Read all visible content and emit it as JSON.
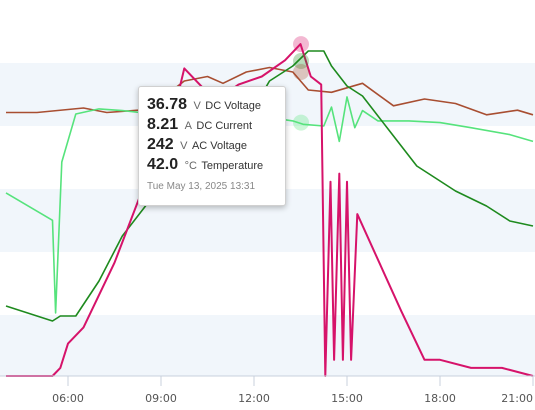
{
  "chart_data": {
    "type": "line",
    "x_ticks": [
      "06:00",
      "09:00",
      "12:00",
      "15:00",
      "18:00",
      "21:00"
    ],
    "grid": "horizontal alternating bands",
    "series": [
      {
        "name": "DC Voltage",
        "unit": "V",
        "color": "#d6136a",
        "points": [
          [
            "04:00",
            0
          ],
          [
            "05:00",
            0
          ],
          [
            "05:30",
            0
          ],
          [
            "05:45",
            1
          ],
          [
            "06:00",
            4
          ],
          [
            "06:30",
            6
          ],
          [
            "07:30",
            14
          ],
          [
            "08:30",
            24
          ],
          [
            "09:15",
            30
          ],
          [
            "09:45",
            38
          ],
          [
            "10:45",
            34
          ],
          [
            "11:30",
            36
          ],
          [
            "12:15",
            37
          ],
          [
            "13:00",
            39
          ],
          [
            "13:30",
            41
          ],
          [
            "13:50",
            37
          ],
          [
            "14:10",
            36
          ],
          [
            "14:18",
            0
          ],
          [
            "14:28",
            24
          ],
          [
            "14:35",
            2
          ],
          [
            "14:45",
            25
          ],
          [
            "14:52",
            2
          ],
          [
            "15:00",
            24
          ],
          [
            "15:08",
            2
          ],
          [
            "15:20",
            20
          ],
          [
            "16:45",
            8
          ],
          [
            "17:30",
            2
          ],
          [
            "18:00",
            2
          ],
          [
            "19:00",
            1
          ],
          [
            "20:00",
            1
          ],
          [
            "21:00",
            0
          ]
        ]
      },
      {
        "name": "DC Current",
        "unit": "A",
        "color": "#1e8a1e",
        "points": [
          [
            "04:00",
            7.0
          ],
          [
            "05:30",
            5.5
          ],
          [
            "05:45",
            6.0
          ],
          [
            "06:15",
            6.0
          ],
          [
            "07:00",
            9.5
          ],
          [
            "07:45",
            14.0
          ],
          [
            "08:30",
            17.0
          ],
          [
            "09:15",
            21.0
          ],
          [
            "10:00",
            24.0
          ],
          [
            "10:30",
            26.0
          ],
          [
            "11:15",
            27.0
          ],
          [
            "11:45",
            25.5
          ],
          [
            "12:30",
            29.5
          ],
          [
            "13:15",
            31.0
          ],
          [
            "13:45",
            32.5
          ],
          [
            "14:15",
            32.5
          ],
          [
            "14:30",
            31.0
          ],
          [
            "15:00",
            29.0
          ],
          [
            "15:30",
            28.0
          ],
          [
            "16:30",
            24.0
          ],
          [
            "17:15",
            21.0
          ],
          [
            "17:45",
            20.0
          ],
          [
            "18:30",
            18.5
          ],
          [
            "19:30",
            17.0
          ],
          [
            "20:15",
            15.5
          ],
          [
            "21:00",
            15.0
          ]
        ]
      },
      {
        "name": "AC Voltage",
        "unit": "V",
        "color": "#56e37c",
        "points": [
          [
            "04:00",
            180
          ],
          [
            "05:30",
            164
          ],
          [
            "05:36",
            110
          ],
          [
            "05:48",
            198
          ],
          [
            "06:15",
            226
          ],
          [
            "07:00",
            229
          ],
          [
            "07:45",
            228
          ],
          [
            "08:45",
            226
          ],
          [
            "09:30",
            229
          ],
          [
            "10:15",
            228
          ],
          [
            "11:00",
            225
          ],
          [
            "11:45",
            226
          ],
          [
            "12:30",
            224
          ],
          [
            "13:15",
            222
          ],
          [
            "13:35",
            220
          ],
          [
            "14:15",
            219
          ],
          [
            "14:30",
            230
          ],
          [
            "14:45",
            210
          ],
          [
            "15:00",
            236
          ],
          [
            "15:15",
            218
          ],
          [
            "15:30",
            228
          ],
          [
            "16:00",
            222
          ],
          [
            "17:00",
            222
          ],
          [
            "18:00",
            221
          ],
          [
            "19:00",
            218
          ],
          [
            "20:15",
            214
          ],
          [
            "21:00",
            210
          ]
        ]
      },
      {
        "name": "Temperature",
        "unit": "°C",
        "color": "#a84e31",
        "points": [
          [
            "04:00",
            41.0
          ],
          [
            "05:00",
            41.0
          ],
          [
            "06:30",
            41.2
          ],
          [
            "07:15",
            41.0
          ],
          [
            "08:15",
            41.1
          ],
          [
            "09:00",
            41.6
          ],
          [
            "09:45",
            42.4
          ],
          [
            "10:30",
            42.6
          ],
          [
            "11:00",
            42.3
          ],
          [
            "11:45",
            42.8
          ],
          [
            "12:30",
            43.0
          ],
          [
            "13:15",
            42.8
          ],
          [
            "13:45",
            42.0
          ],
          [
            "14:30",
            41.9
          ],
          [
            "15:30",
            42.3
          ],
          [
            "16:30",
            41.3
          ],
          [
            "17:30",
            41.6
          ],
          [
            "18:30",
            41.4
          ],
          [
            "19:30",
            40.9
          ],
          [
            "20:30",
            41.1
          ],
          [
            "21:00",
            40.9
          ]
        ]
      }
    ]
  },
  "tooltip": {
    "timestamp": "Tue May 13, 2025 13:31",
    "rows": [
      {
        "value": "36.78",
        "unit": "V",
        "name": "DC Voltage"
      },
      {
        "value": "8.21",
        "unit": "A",
        "name": "DC Current"
      },
      {
        "value": "242",
        "unit": "V",
        "name": "AC Voltage"
      },
      {
        "value": "42.0",
        "unit": "°C",
        "name": "Temperature"
      }
    ]
  }
}
